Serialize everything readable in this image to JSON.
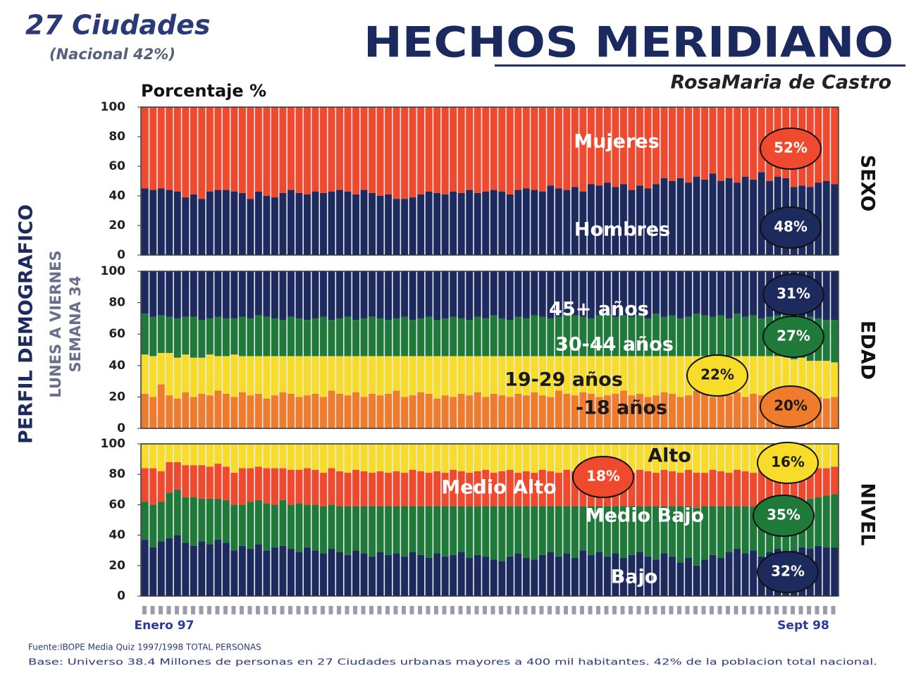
{
  "header": {
    "title": "HECHOS MERIDIANO",
    "subtitle": "RosaMaria de Castro",
    "cities": "27 Ciudades",
    "national": "(Nacional 42%)"
  },
  "side": {
    "main": "PERFIL DEMOGRAFICO",
    "days": "LUNES A VIERNES",
    "week": "SEMANA 34"
  },
  "x_start": "Enero 97",
  "x_end": "Sept 98",
  "footer": {
    "source": "Fuente:IBOPE Media Quiz 1997/1998 TOTAL PERSONAS",
    "base": "Base: Universo 38.4 Millones de personas en 27 Ciudades urbanas mayores a 400 mil habitantes. 42% de la poblacion total nacional."
  },
  "chart_data": [
    {
      "type": "stacked_bar",
      "ylabel": "Porcentaje %",
      "side_label": "SEXO",
      "ylim": [
        0,
        100
      ],
      "yticks": [
        0,
        20,
        40,
        60,
        80,
        100
      ],
      "series": [
        {
          "name": "Hombres",
          "color": "#1c2a5e",
          "label_color": "#ffffff",
          "callout": "48%",
          "values": [
            45,
            44,
            45,
            44,
            43,
            39,
            41,
            38,
            43,
            44,
            44,
            43,
            42,
            38,
            43,
            40,
            39,
            42,
            44,
            42,
            41,
            43,
            42,
            43,
            44,
            43,
            41,
            44,
            42,
            40,
            41,
            38,
            38,
            39,
            41,
            43,
            42,
            41,
            43,
            42,
            44,
            42,
            43,
            44,
            43,
            41,
            44,
            45,
            44,
            43,
            47,
            45,
            44,
            46,
            43,
            48,
            47,
            49,
            46,
            48,
            44,
            47,
            45,
            48,
            52,
            50,
            52,
            49,
            53,
            51,
            55,
            50,
            52,
            49,
            53,
            51,
            56,
            50,
            53,
            52,
            46,
            47,
            46,
            49,
            50,
            48
          ]
        },
        {
          "name": "Mujeres",
          "color": "#f04a2e",
          "label_color": "#ffffff",
          "callout": "52%",
          "values": [
            55,
            56,
            55,
            56,
            57,
            61,
            59,
            62,
            57,
            56,
            56,
            57,
            58,
            62,
            57,
            60,
            61,
            58,
            56,
            58,
            59,
            57,
            58,
            57,
            56,
            57,
            59,
            56,
            58,
            60,
            59,
            62,
            62,
            61,
            59,
            57,
            58,
            59,
            57,
            58,
            56,
            58,
            57,
            56,
            57,
            59,
            56,
            55,
            56,
            57,
            53,
            55,
            56,
            54,
            57,
            52,
            53,
            51,
            54,
            52,
            56,
            53,
            55,
            52,
            48,
            50,
            48,
            51,
            47,
            49,
            45,
            50,
            48,
            51,
            47,
            49,
            44,
            50,
            47,
            48,
            54,
            53,
            54,
            51,
            50,
            52
          ]
        }
      ]
    },
    {
      "type": "stacked_bar",
      "side_label": "EDAD",
      "ylim": [
        0,
        100
      ],
      "yticks": [
        0,
        20,
        40,
        60,
        80,
        100
      ],
      "series": [
        {
          "name": "-18 años",
          "color": "#ef7b2c",
          "label_color": "#1a1a1a",
          "callout": "20%",
          "values": [
            22,
            20,
            28,
            21,
            19,
            23,
            20,
            22,
            21,
            24,
            22,
            20,
            23,
            21,
            22,
            19,
            21,
            23,
            22,
            20,
            21,
            22,
            20,
            24,
            22,
            21,
            23,
            20,
            22,
            21,
            22,
            24,
            20,
            21,
            23,
            22,
            19,
            21,
            20,
            22,
            21,
            23,
            20,
            22,
            21,
            20,
            22,
            21,
            23,
            21,
            20,
            24,
            22,
            21,
            23,
            22,
            20,
            21,
            22,
            24,
            21,
            22,
            20,
            21,
            23,
            22,
            20,
            21,
            24,
            22,
            20,
            22,
            21,
            23,
            20,
            22,
            21,
            19,
            22,
            21,
            20,
            22,
            21,
            20,
            19,
            20
          ]
        },
        {
          "name": "19-29 años",
          "color": "#f7dc2a",
          "label_color": "#1a1a1a",
          "callout": "22%",
          "values": [
            25,
            26,
            20,
            27,
            26,
            24,
            25,
            23,
            26,
            22,
            24,
            27,
            23,
            25,
            24,
            27,
            25,
            23,
            24,
            26,
            25,
            24,
            26,
            22,
            24,
            25,
            23,
            26,
            24,
            25,
            24,
            22,
            26,
            25,
            23,
            24,
            27,
            25,
            26,
            24,
            25,
            23,
            26,
            24,
            25,
            26,
            24,
            25,
            23,
            25,
            26,
            22,
            24,
            25,
            23,
            24,
            26,
            25,
            24,
            22,
            25,
            24,
            26,
            25,
            23,
            24,
            26,
            25,
            22,
            24,
            26,
            24,
            25,
            23,
            26,
            24,
            25,
            27,
            24,
            25,
            24,
            23,
            22,
            23,
            24,
            22
          ]
        },
        {
          "name": "30-44 años",
          "color": "#1f7a3a",
          "label_color": "#ffffff",
          "callout": "27%",
          "values": [
            26,
            25,
            24,
            23,
            25,
            24,
            26,
            24,
            23,
            25,
            24,
            23,
            25,
            24,
            26,
            25,
            24,
            23,
            25,
            24,
            23,
            24,
            25,
            23,
            24,
            25,
            23,
            24,
            25,
            24,
            23,
            24,
            25,
            23,
            24,
            25,
            23,
            24,
            25,
            24,
            23,
            25,
            24,
            26,
            24,
            23,
            25,
            24,
            26,
            25,
            24,
            25,
            27,
            26,
            25,
            24,
            26,
            27,
            25,
            26,
            25,
            26,
            24,
            27,
            25,
            26,
            24,
            25,
            27,
            26,
            25,
            26,
            24,
            27,
            25,
            26,
            24,
            25,
            26,
            27,
            25,
            26,
            28,
            27,
            26,
            27
          ]
        },
        {
          "name": "45+ años",
          "color": "#1c2a5e",
          "label_color": "#ffffff",
          "callout": "31%",
          "values": [
            27,
            29,
            28,
            29,
            30,
            29,
            29,
            31,
            30,
            29,
            30,
            30,
            29,
            30,
            28,
            29,
            30,
            31,
            29,
            30,
            31,
            30,
            29,
            31,
            30,
            29,
            31,
            30,
            29,
            30,
            31,
            30,
            29,
            31,
            30,
            29,
            31,
            30,
            29,
            30,
            31,
            29,
            30,
            28,
            30,
            31,
            29,
            30,
            28,
            29,
            30,
            29,
            27,
            28,
            29,
            30,
            28,
            27,
            29,
            28,
            29,
            28,
            30,
            27,
            29,
            28,
            30,
            29,
            27,
            28,
            29,
            28,
            30,
            27,
            29,
            28,
            30,
            29,
            28,
            27,
            31,
            29,
            29,
            30,
            31,
            31
          ]
        }
      ]
    },
    {
      "type": "stacked_bar",
      "side_label": "NIVEL",
      "ylim": [
        0,
        100
      ],
      "yticks": [
        0,
        20,
        40,
        60,
        80,
        100
      ],
      "series": [
        {
          "name": "Bajo",
          "color": "#1c2a5e",
          "label_color": "#ffffff",
          "callout": "32%",
          "values": [
            37,
            32,
            36,
            38,
            40,
            35,
            33,
            36,
            34,
            37,
            35,
            30,
            33,
            31,
            34,
            30,
            32,
            33,
            31,
            29,
            32,
            30,
            28,
            31,
            29,
            27,
            30,
            28,
            26,
            29,
            27,
            28,
            26,
            29,
            27,
            25,
            28,
            26,
            27,
            29,
            25,
            27,
            26,
            24,
            23,
            26,
            28,
            25,
            24,
            27,
            29,
            26,
            28,
            25,
            30,
            27,
            29,
            26,
            28,
            25,
            27,
            29,
            26,
            24,
            28,
            26,
            22,
            25,
            20,
            24,
            27,
            25,
            29,
            31,
            28,
            30,
            26,
            29,
            31,
            28,
            30,
            32,
            31,
            33,
            32,
            32
          ]
        },
        {
          "name": "Medio Bajo",
          "color": "#1f7a3a",
          "label_color": "#ffffff",
          "callout": "35%",
          "values": [
            25,
            28,
            26,
            30,
            30,
            30,
            32,
            28,
            30,
            27,
            28,
            30,
            27,
            31,
            29,
            31,
            28,
            30,
            29,
            32,
            28,
            30,
            31,
            29,
            30,
            32,
            29,
            31,
            33,
            30,
            32,
            31,
            33,
            30,
            32,
            34,
            31,
            33,
            32,
            30,
            34,
            32,
            33,
            35,
            36,
            33,
            31,
            34,
            35,
            32,
            30,
            33,
            31,
            34,
            29,
            32,
            30,
            33,
            31,
            34,
            32,
            30,
            33,
            35,
            31,
            33,
            37,
            34,
            38,
            35,
            32,
            34,
            30,
            28,
            31,
            29,
            33,
            30,
            28,
            31,
            32,
            31,
            33,
            32,
            34,
            35
          ]
        },
        {
          "name": "Medio Alto",
          "color": "#f04a2e",
          "label_color": "#ffffff",
          "callout": "18%",
          "values": [
            22,
            24,
            20,
            20,
            18,
            21,
            21,
            22,
            21,
            23,
            22,
            21,
            24,
            22,
            22,
            23,
            24,
            21,
            23,
            22,
            24,
            23,
            22,
            24,
            23,
            22,
            24,
            23,
            22,
            23,
            22,
            23,
            22,
            24,
            23,
            22,
            23,
            22,
            24,
            23,
            22,
            23,
            24,
            22,
            23,
            24,
            22,
            23,
            22,
            24,
            23,
            22,
            24,
            23,
            22,
            24,
            23,
            22,
            24,
            23,
            22,
            24,
            23,
            22,
            24,
            23,
            22,
            24,
            23,
            22,
            24,
            23,
            22,
            24,
            23,
            22,
            24,
            23,
            22,
            24,
            22,
            21,
            20,
            19,
            18,
            18
          ]
        },
        {
          "name": "Alto",
          "color": "#f7dc2a",
          "label_color": "#1a1a1a",
          "callout": "16%",
          "values": [
            16,
            16,
            18,
            12,
            12,
            14,
            14,
            14,
            15,
            13,
            15,
            19,
            16,
            16,
            15,
            16,
            16,
            16,
            17,
            17,
            16,
            17,
            19,
            16,
            18,
            19,
            17,
            18,
            19,
            18,
            19,
            18,
            19,
            17,
            18,
            19,
            18,
            19,
            17,
            18,
            19,
            18,
            17,
            19,
            18,
            17,
            19,
            18,
            19,
            17,
            18,
            19,
            17,
            18,
            19,
            17,
            18,
            19,
            17,
            18,
            19,
            17,
            18,
            19,
            17,
            18,
            19,
            17,
            19,
            19,
            17,
            18,
            19,
            17,
            18,
            19,
            17,
            18,
            19,
            17,
            16,
            16,
            16,
            16,
            16,
            15
          ]
        }
      ]
    }
  ]
}
